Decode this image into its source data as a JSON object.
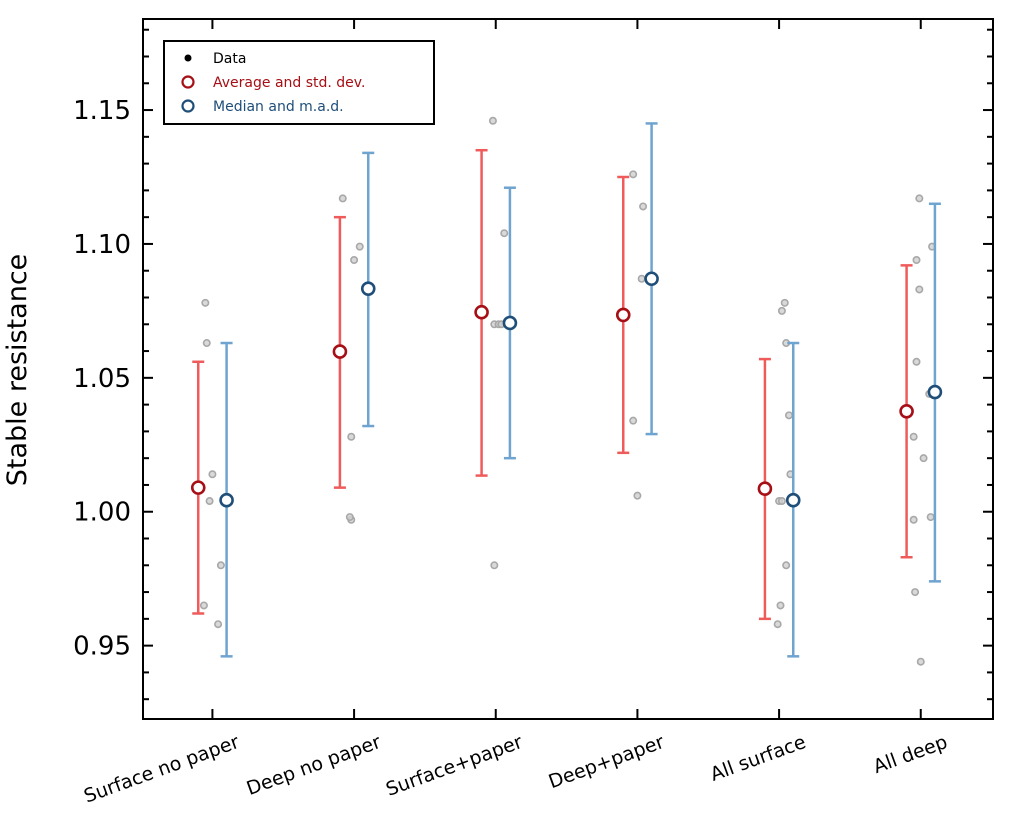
{
  "chart_data": {
    "type": "scatter",
    "title": "",
    "xlabel": "",
    "ylabel": "Stable resistance",
    "categories": [
      "Surface no paper",
      "Deep no paper",
      "Surface+paper",
      "Deep+paper",
      "All surface",
      "All deep"
    ],
    "xlim": [
      -0.49,
      5.51
    ],
    "ylim": [
      0.9226,
      1.184
    ],
    "yticks": [
      "0.95",
      "1.00",
      "1.05",
      "1.10",
      "1.15"
    ],
    "grid": false,
    "legend": {
      "placement": "top-left",
      "entries": [
        {
          "label": "Data",
          "color": "#000000"
        },
        {
          "label": "Average and std. dev.",
          "color": "#a50f15"
        },
        {
          "label": "Median and m.a.d.",
          "color": "#1f4e79"
        }
      ]
    },
    "colors": {
      "avg": "#a50f15",
      "avg_err": "#ef5b5b",
      "med": "#1f4e79",
      "med_err": "#6fa3d0",
      "data": "#9a9a9a"
    },
    "series": [
      {
        "name": "Average and std. dev.",
        "values": [
          1.009,
          1.0598,
          1.0745,
          1.0735,
          1.0086,
          1.0375
        ],
        "low": [
          0.962,
          1.009,
          1.0135,
          1.022,
          0.96,
          0.983
        ],
        "high": [
          1.056,
          1.11,
          1.135,
          1.125,
          1.057,
          1.092
        ]
      },
      {
        "name": "Median and m.a.d.",
        "values": [
          1.0043,
          1.0833,
          1.0705,
          1.087,
          1.0043,
          1.0447
        ],
        "low": [
          0.946,
          1.032,
          1.02,
          1.029,
          0.946,
          0.974
        ],
        "high": [
          1.063,
          1.134,
          1.121,
          1.145,
          1.063,
          1.115
        ]
      }
    ],
    "data_points": [
      [
        {
          "j": -0.05,
          "y": 1.078
        },
        {
          "j": -0.04,
          "y": 1.063
        },
        {
          "j": 0.0,
          "y": 1.014
        },
        {
          "j": -0.02,
          "y": 1.004
        },
        {
          "j": 0.06,
          "y": 0.98
        },
        {
          "j": -0.06,
          "y": 0.965
        },
        {
          "j": 0.04,
          "y": 0.958
        }
      ],
      [
        {
          "j": -0.08,
          "y": 1.117
        },
        {
          "j": 0.04,
          "y": 1.099
        },
        {
          "j": 0.0,
          "y": 1.094
        },
        {
          "j": 0.12,
          "y": 1.083
        },
        {
          "j": -0.02,
          "y": 1.028
        },
        {
          "j": -0.02,
          "y": 0.997
        },
        {
          "j": -0.03,
          "y": 0.998
        }
      ],
      [
        {
          "j": -0.02,
          "y": 1.146
        },
        {
          "j": 0.06,
          "y": 1.104
        },
        {
          "j": -0.01,
          "y": 1.07
        },
        {
          "j": 0.02,
          "y": 1.07
        },
        {
          "j": 0.04,
          "y": 1.07
        },
        {
          "j": -0.01,
          "y": 0.98
        }
      ],
      [
        {
          "j": -0.03,
          "y": 1.126
        },
        {
          "j": 0.04,
          "y": 1.114
        },
        {
          "j": 0.03,
          "y": 1.087
        },
        {
          "j": -0.03,
          "y": 1.034
        },
        {
          "j": 0.0,
          "y": 1.006
        }
      ],
      [
        {
          "j": 0.04,
          "y": 1.078
        },
        {
          "j": 0.02,
          "y": 1.075
        },
        {
          "j": 0.05,
          "y": 1.063
        },
        {
          "j": 0.07,
          "y": 1.036
        },
        {
          "j": 0.08,
          "y": 1.014
        },
        {
          "j": 0.0,
          "y": 1.004
        },
        {
          "j": 0.02,
          "y": 1.004
        },
        {
          "j": 0.05,
          "y": 0.98
        },
        {
          "j": 0.01,
          "y": 0.965
        },
        {
          "j": -0.01,
          "y": 0.958
        }
      ],
      [
        {
          "j": -0.01,
          "y": 1.117
        },
        {
          "j": 0.08,
          "y": 1.099
        },
        {
          "j": -0.03,
          "y": 1.094
        },
        {
          "j": -0.01,
          "y": 1.083
        },
        {
          "j": -0.03,
          "y": 1.056
        },
        {
          "j": 0.06,
          "y": 1.044
        },
        {
          "j": -0.05,
          "y": 1.028
        },
        {
          "j": 0.02,
          "y": 1.02
        },
        {
          "j": -0.05,
          "y": 0.997
        },
        {
          "j": 0.07,
          "y": 0.998
        },
        {
          "j": -0.04,
          "y": 0.97
        },
        {
          "j": 0.0,
          "y": 0.944
        }
      ]
    ]
  }
}
